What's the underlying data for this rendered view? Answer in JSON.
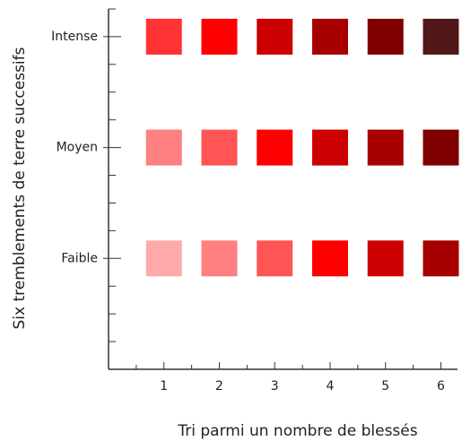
{
  "chart_data": {
    "type": "heatmap",
    "xlabel": "Tri parmi un nombre de blessés",
    "ylabel": "Six tremblements de terre successifs",
    "x": [
      1,
      2,
      3,
      4,
      5,
      6
    ],
    "xlim": [
      0,
      6.3
    ],
    "xticks": [
      1,
      2,
      3,
      4,
      5,
      6
    ],
    "xticks_minor": [
      0.5,
      1.5,
      2.5,
      3.5,
      4.5,
      5.5
    ],
    "ylim": [
      0,
      3.25
    ],
    "yticks": [
      {
        "value": 1,
        "label": "Faible"
      },
      {
        "value": 2,
        "label": "Moyen"
      },
      {
        "value": 3,
        "label": "Intense"
      }
    ],
    "yticks_minor": [
      0.25,
      0.5,
      0.75,
      1.25,
      1.5,
      1.75,
      2.25,
      2.5,
      2.75,
      3.25
    ],
    "colors": [
      [
        "#ffaaaa",
        "#ff8080",
        "#ff5555",
        "#ff0000",
        "#cc0000",
        "#a80000"
      ],
      [
        "#ff8080",
        "#ff5555",
        "#ff0000",
        "#cc0000",
        "#a80000",
        "#800000"
      ],
      [
        "#ff3333",
        "#ff0000",
        "#cc0000",
        "#a80000",
        "#800000",
        "#501818"
      ]
    ]
  }
}
